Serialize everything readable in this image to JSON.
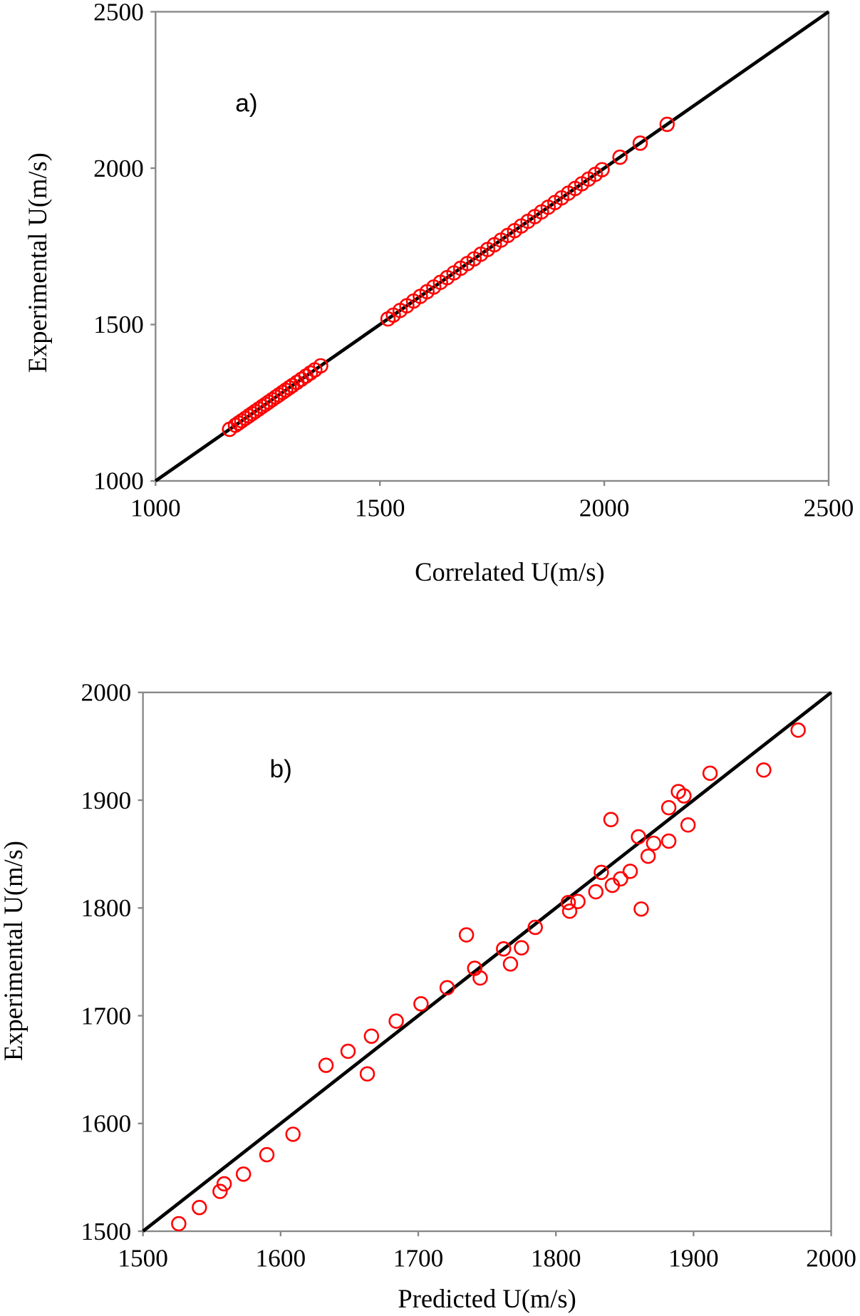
{
  "chart_data": [
    {
      "type": "scatter",
      "panel_label": "a)",
      "xlabel": "Correlated U(m/s)",
      "ylabel": "Experimental U(m/s)",
      "xlim": [
        1000,
        2500
      ],
      "ylim": [
        1000,
        2500
      ],
      "xticks": [
        "1000",
        "1500",
        "2000",
        "2500"
      ],
      "yticks": [
        "1000",
        "1500",
        "2000",
        "2500"
      ],
      "reference_line": "y = x",
      "marker_color": "#ff0000",
      "line_color": "#000000",
      "x": [
        1165,
        1178,
        1185,
        1192,
        1200,
        1208,
        1215,
        1222,
        1230,
        1238,
        1245,
        1252,
        1260,
        1268,
        1275,
        1283,
        1290,
        1298,
        1305,
        1315,
        1325,
        1335,
        1345,
        1355,
        1368,
        1518,
        1530,
        1545,
        1560,
        1575,
        1590,
        1605,
        1620,
        1635,
        1650,
        1665,
        1680,
        1695,
        1710,
        1725,
        1740,
        1755,
        1770,
        1785,
        1800,
        1815,
        1830,
        1845,
        1860,
        1875,
        1890,
        1905,
        1920,
        1935,
        1950,
        1965,
        1980,
        1995,
        2035,
        2080,
        2140
      ],
      "y": [
        1165,
        1178,
        1185,
        1192,
        1200,
        1208,
        1215,
        1222,
        1230,
        1238,
        1245,
        1252,
        1260,
        1268,
        1275,
        1283,
        1290,
        1298,
        1305,
        1315,
        1325,
        1335,
        1345,
        1355,
        1368,
        1518,
        1530,
        1545,
        1560,
        1575,
        1590,
        1605,
        1620,
        1635,
        1650,
        1665,
        1680,
        1695,
        1710,
        1725,
        1740,
        1755,
        1770,
        1785,
        1800,
        1815,
        1830,
        1845,
        1860,
        1875,
        1890,
        1905,
        1920,
        1935,
        1950,
        1965,
        1980,
        1995,
        2035,
        2080,
        2140
      ]
    },
    {
      "type": "scatter",
      "panel_label": "b)",
      "xlabel": "Predicted U(m/s)",
      "ylabel": "Experimental U(m/s)",
      "xlim": [
        1500,
        2000
      ],
      "ylim": [
        1500,
        2000
      ],
      "xticks": [
        "1500",
        "1600",
        "1700",
        "1800",
        "1900",
        "2000"
      ],
      "yticks": [
        "1500",
        "1600",
        "1700",
        "1800",
        "1900",
        "2000"
      ],
      "reference_line": "y = x",
      "marker_color": "#ff0000",
      "line_color": "#000000",
      "x": [
        1526,
        1541,
        1556,
        1559,
        1573,
        1590,
        1609,
        1633,
        1649,
        1663,
        1666,
        1684,
        1702,
        1721,
        1735,
        1741,
        1745,
        1762,
        1767,
        1775,
        1785,
        1809,
        1810,
        1816,
        1829,
        1833,
        1840,
        1841,
        1847,
        1854,
        1860,
        1862,
        1867,
        1871,
        1882,
        1882,
        1889,
        1893,
        1896,
        1912,
        1951,
        1976
      ],
      "y": [
        1507,
        1522,
        1537,
        1544,
        1553,
        1571,
        1590,
        1654,
        1667,
        1646,
        1681,
        1695,
        1711,
        1726,
        1775,
        1744,
        1735,
        1762,
        1748,
        1763,
        1782,
        1805,
        1797,
        1806,
        1815,
        1833,
        1882,
        1821,
        1827,
        1834,
        1866,
        1799,
        1848,
        1860,
        1862,
        1893,
        1908,
        1904,
        1877,
        1925,
        1928,
        1965
      ]
    }
  ]
}
